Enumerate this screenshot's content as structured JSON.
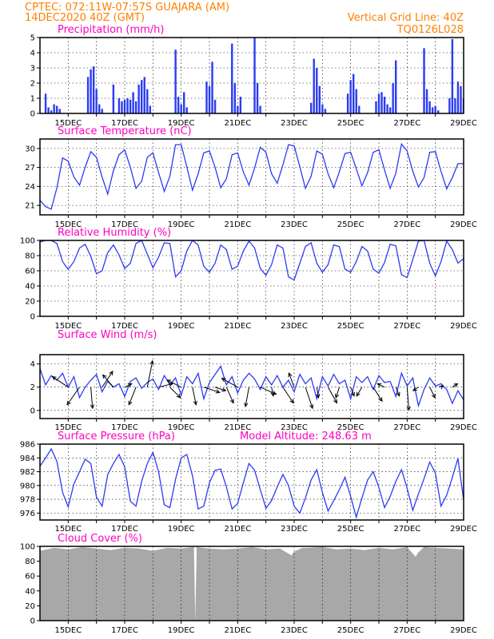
{
  "header": {
    "line1": "CPTEC:   072:11W-07:57S   GUAJARA (AM)",
    "line2": "14DEC2020 40Z (GMT)",
    "grid_note": "Vertical Grid Line: 40Z",
    "code": "TQ0126L028"
  },
  "x_axis": {
    "day_range": [
      14,
      29
    ],
    "date_labels": [
      "15DEC",
      "17DEC",
      "19DEC",
      "21DEC",
      "23DEC",
      "25DEC",
      "27DEC",
      "29DEC"
    ]
  },
  "colors": {
    "series": "#2b3cf2",
    "cloud": "#a8a8a8",
    "header": "#ff8000",
    "title": "#ff00c0"
  },
  "chart_data": [
    {
      "id": "precip",
      "type": "bar",
      "title": "Precipitation (mm/h)",
      "ylim": [
        0,
        5
      ],
      "yticks": [
        "0",
        "1",
        "2",
        "3",
        "4",
        "5"
      ],
      "x": [
        14.2,
        14.3,
        14.4,
        14.5,
        14.6,
        14.7,
        15.7,
        15.8,
        15.9,
        16.0,
        16.1,
        16.2,
        16.6,
        16.8,
        16.9,
        17.0,
        17.1,
        17.2,
        17.3,
        17.4,
        17.5,
        17.6,
        17.7,
        17.8,
        17.9,
        18.8,
        18.9,
        19.0,
        19.1,
        19.2,
        19.9,
        20.0,
        20.1,
        20.2,
        20.8,
        20.9,
        21.0,
        21.1,
        21.6,
        21.7,
        21.8,
        23.6,
        23.7,
        23.8,
        23.9,
        24.0,
        24.1,
        24.9,
        25.0,
        25.1,
        25.2,
        25.3,
        25.9,
        26.0,
        26.1,
        26.2,
        26.3,
        26.4,
        26.5,
        26.6,
        27.6,
        27.7,
        27.8,
        27.9,
        28.0,
        28.1,
        28.5,
        28.6,
        28.7,
        28.8,
        28.9,
        29.0
      ],
      "values": [
        1.3,
        0.4,
        0.2,
        0.6,
        0.5,
        0.3,
        2.4,
        2.9,
        3.1,
        1.6,
        0.6,
        0.3,
        1.9,
        1.0,
        0.8,
        0.9,
        1.0,
        0.9,
        1.4,
        0.8,
        1.9,
        2.2,
        2.4,
        1.6,
        0.5,
        4.2,
        1.1,
        0.6,
        1.4,
        0.4,
        2.1,
        1.8,
        3.4,
        0.9,
        4.6,
        2.0,
        0.5,
        1.1,
        5.0,
        2.0,
        0.5,
        0.7,
        3.6,
        3.0,
        1.8,
        0.6,
        0.3,
        1.3,
        2.2,
        2.6,
        1.6,
        0.5,
        0.8,
        1.3,
        1.4,
        1.1,
        0.6,
        0.4,
        2.0,
        3.5,
        4.3,
        1.6,
        0.8,
        0.4,
        0.5,
        0.2,
        1.0,
        4.9,
        1.0,
        2.1,
        1.8,
        1.0
      ]
    },
    {
      "id": "temp",
      "type": "line",
      "title": "Surface Temperature (nC)",
      "ylim": [
        19.5,
        31.5
      ],
      "yticks": [
        "21",
        "24",
        "27",
        "30"
      ],
      "x": [
        14.0,
        14.2,
        14.4,
        14.6,
        14.8,
        15.0,
        15.2,
        15.4,
        15.6,
        15.8,
        16.0,
        16.2,
        16.4,
        16.6,
        16.8,
        17.0,
        17.2,
        17.4,
        17.6,
        17.8,
        18.0,
        18.2,
        18.4,
        18.6,
        18.8,
        19.0,
        19.2,
        19.4,
        19.6,
        19.8,
        20.0,
        20.2,
        20.4,
        20.6,
        20.8,
        21.0,
        21.2,
        21.4,
        21.6,
        21.8,
        22.0,
        22.2,
        22.4,
        22.6,
        22.8,
        23.0,
        23.2,
        23.4,
        23.6,
        23.8,
        24.0,
        24.2,
        24.4,
        24.6,
        24.8,
        25.0,
        25.2,
        25.4,
        25.6,
        25.8,
        26.0,
        26.2,
        26.4,
        26.6,
        26.8,
        27.0,
        27.2,
        27.4,
        27.6,
        27.8,
        28.0,
        28.2,
        28.4,
        28.6,
        28.8,
        29.0
      ],
      "values": [
        21.8,
        20.8,
        20.4,
        23.8,
        28.5,
        28.0,
        25.5,
        24.2,
        27.0,
        29.5,
        28.6,
        25.5,
        22.8,
        26.5,
        29.0,
        29.8,
        27.0,
        23.7,
        24.8,
        28.6,
        29.3,
        26.2,
        23.2,
        25.6,
        30.6,
        30.6,
        27.1,
        23.4,
        26.0,
        29.3,
        29.6,
        27.0,
        23.8,
        25.2,
        29.0,
        29.3,
        26.3,
        24.2,
        26.9,
        30.2,
        29.4,
        26.0,
        24.5,
        27.4,
        30.6,
        30.4,
        27.1,
        23.7,
        25.6,
        29.6,
        29.1,
        26.0,
        23.8,
        26.3,
        29.2,
        29.4,
        26.8,
        24.1,
        26.2,
        29.4,
        29.8,
        26.6,
        23.7,
        26.1,
        30.7,
        29.6,
        26.4,
        23.9,
        25.4,
        29.4,
        29.5,
        26.4,
        23.6,
        25.4,
        27.6,
        27.6
      ]
    },
    {
      "id": "rh",
      "type": "line",
      "title": "Relative Humidity (%)",
      "ylim": [
        0,
        100
      ],
      "yticks": [
        "0",
        "20",
        "40",
        "60",
        "80",
        "100"
      ],
      "x": [
        14.0,
        14.2,
        14.4,
        14.6,
        14.8,
        15.0,
        15.2,
        15.4,
        15.6,
        15.8,
        16.0,
        16.2,
        16.4,
        16.6,
        16.8,
        17.0,
        17.2,
        17.4,
        17.6,
        17.8,
        18.0,
        18.2,
        18.4,
        18.6,
        18.8,
        19.0,
        19.2,
        19.4,
        19.6,
        19.8,
        20.0,
        20.2,
        20.4,
        20.6,
        20.8,
        21.0,
        21.2,
        21.4,
        21.6,
        21.8,
        22.0,
        22.2,
        22.4,
        22.6,
        22.8,
        23.0,
        23.2,
        23.4,
        23.6,
        23.8,
        24.0,
        24.2,
        24.4,
        24.6,
        24.8,
        25.0,
        25.2,
        25.4,
        25.6,
        25.8,
        26.0,
        26.2,
        26.4,
        26.6,
        26.8,
        27.0,
        27.2,
        27.4,
        27.6,
        27.8,
        28.0,
        28.2,
        28.4,
        28.6,
        28.8,
        29.0
      ],
      "values": [
        98,
        100,
        100,
        96,
        72,
        62,
        72,
        90,
        95,
        79,
        56,
        60,
        84,
        94,
        81,
        63,
        70,
        96,
        100,
        82,
        64,
        78,
        97,
        96,
        52,
        60,
        86,
        100,
        94,
        66,
        58,
        70,
        94,
        88,
        62,
        66,
        86,
        99,
        90,
        63,
        54,
        68,
        94,
        90,
        52,
        48,
        70,
        92,
        97,
        70,
        58,
        68,
        94,
        92,
        62,
        58,
        72,
        92,
        86,
        62,
        57,
        71,
        95,
        93,
        55,
        51,
        75,
        99,
        100,
        70,
        53,
        72,
        99,
        88,
        70,
        76
      ]
    },
    {
      "id": "wind",
      "type": "line",
      "title": "Surface Wind (m/s)",
      "ylim": [
        -0.7,
        4.8
      ],
      "yticks": [
        "0",
        "2",
        "4"
      ],
      "x": [
        14.0,
        14.2,
        14.4,
        14.6,
        14.8,
        15.0,
        15.2,
        15.4,
        15.6,
        15.8,
        16.0,
        16.2,
        16.4,
        16.6,
        16.8,
        17.0,
        17.2,
        17.4,
        17.6,
        17.8,
        18.0,
        18.2,
        18.4,
        18.6,
        18.8,
        19.0,
        19.2,
        19.4,
        19.6,
        19.8,
        20.0,
        20.2,
        20.4,
        20.6,
        20.8,
        21.0,
        21.2,
        21.4,
        21.6,
        21.8,
        22.0,
        22.2,
        22.4,
        22.6,
        22.8,
        23.0,
        23.2,
        23.4,
        23.6,
        23.8,
        24.0,
        24.2,
        24.4,
        24.6,
        24.8,
        25.0,
        25.2,
        25.4,
        25.6,
        25.8,
        26.0,
        26.2,
        26.4,
        26.6,
        26.8,
        27.0,
        27.2,
        27.4,
        27.6,
        27.8,
        28.0,
        28.2,
        28.4,
        28.6,
        28.8,
        29.0
      ],
      "values": [
        3.6,
        2.2,
        3.0,
        2.6,
        3.2,
        2.0,
        2.9,
        1.1,
        2.0,
        2.6,
        3.1,
        1.6,
        2.5,
        2.0,
        2.3,
        1.2,
        2.5,
        2.8,
        1.9,
        2.4,
        2.7,
        1.8,
        3.0,
        2.2,
        2.8,
        1.3,
        2.9,
        2.3,
        3.2,
        1.0,
        2.4,
        3.1,
        3.8,
        2.2,
        2.9,
        1.5,
        2.6,
        3.2,
        2.7,
        1.8,
        2.9,
        2.2,
        3.0,
        2.0,
        2.6,
        1.6,
        3.1,
        2.3,
        2.8,
        1.0,
        2.9,
        2.1,
        3.1,
        2.3,
        2.6,
        1.0,
        2.9,
        2.4,
        2.9,
        1.8,
        3.0,
        2.4,
        2.5,
        1.2,
        3.2,
        2.1,
        2.8,
        0.4,
        1.8,
        2.8,
        2.1,
        2.3,
        1.8,
        0.6,
        1.7,
        0.9
      ],
      "arrows": {
        "x": [
          15.0,
          15.4,
          15.8,
          16.2,
          16.6,
          17.0,
          17.4,
          17.8,
          18.2,
          18.6,
          19.0,
          19.4,
          19.8,
          20.2,
          20.6,
          21.0,
          21.4,
          21.8,
          22.2,
          22.6,
          23.0,
          23.4,
          23.8,
          24.2,
          24.6,
          25.0,
          25.4,
          25.8,
          26.2,
          26.6,
          27.0,
          27.4,
          27.8,
          28.2,
          28.6
        ],
        "u": [
          -0.9,
          -0.7,
          0.1,
          0.6,
          -0.6,
          0.4,
          -0.4,
          0.3,
          0.8,
          0.6,
          -0.8,
          0.2,
          0.9,
          0.6,
          0.4,
          -0.9,
          -0.2,
          0.9,
          0.1,
          0.6,
          -0.3,
          0.4,
          0.1,
          0.5,
          -0.2,
          0.2,
          -0.3,
          0.5,
          -0.4,
          0.2,
          0.1,
          -0.3,
          0.3,
          0.1,
          0.3
        ],
        "v": [
          0.6,
          -1.0,
          -1.2,
          0.9,
          0.7,
          0.2,
          -1.0,
          1.5,
          0.2,
          -0.6,
          0.4,
          -1.0,
          -0.3,
          -0.2,
          -0.9,
          0.5,
          -1.1,
          -0.4,
          -0.5,
          -0.9,
          0.8,
          -1.2,
          -0.6,
          -0.9,
          -0.6,
          -0.5,
          -0.5,
          -0.8,
          0.2,
          -0.5,
          -1.3,
          -0.2,
          -0.6,
          0.1,
          0.2
        ]
      }
    },
    {
      "id": "pressure",
      "type": "line",
      "title": "Surface Pressure (hPa)",
      "subtitle": "Model Altitude: 248.63 m",
      "ylim": [
        975,
        986
      ],
      "yticks": [
        "976",
        "978",
        "980",
        "982",
        "984",
        "986"
      ],
      "x": [
        14.0,
        14.2,
        14.4,
        14.6,
        14.8,
        15.0,
        15.2,
        15.4,
        15.6,
        15.8,
        16.0,
        16.2,
        16.4,
        16.6,
        16.8,
        17.0,
        17.2,
        17.4,
        17.6,
        17.8,
        18.0,
        18.2,
        18.4,
        18.6,
        18.8,
        19.0,
        19.2,
        19.4,
        19.6,
        19.8,
        20.0,
        20.2,
        20.4,
        20.6,
        20.8,
        21.0,
        21.2,
        21.4,
        21.6,
        21.8,
        22.0,
        22.2,
        22.4,
        22.6,
        22.8,
        23.0,
        23.2,
        23.4,
        23.6,
        23.8,
        24.0,
        24.2,
        24.4,
        24.6,
        24.8,
        25.0,
        25.2,
        25.4,
        25.6,
        25.8,
        26.0,
        26.2,
        26.4,
        26.6,
        26.8,
        27.0,
        27.2,
        27.4,
        27.6,
        27.8,
        28.0,
        28.2,
        28.4,
        28.6,
        28.8,
        29.0
      ],
      "values": [
        982.8,
        984.0,
        985.3,
        983.5,
        979.0,
        976.9,
        980.2,
        982.0,
        983.8,
        983.2,
        978.3,
        977.0,
        981.6,
        983.2,
        984.5,
        982.7,
        977.7,
        977.0,
        980.6,
        983.2,
        984.8,
        982.0,
        977.2,
        976.8,
        980.9,
        984.0,
        984.5,
        981.4,
        976.6,
        977.0,
        980.4,
        982.2,
        982.4,
        979.8,
        976.6,
        977.4,
        980.4,
        983.2,
        982.2,
        979.4,
        976.7,
        977.8,
        979.8,
        981.6,
        980.0,
        977.0,
        976.0,
        978.2,
        980.8,
        982.3,
        979.0,
        976.3,
        977.8,
        979.4,
        981.2,
        978.4,
        975.4,
        978.2,
        980.8,
        982.0,
        979.7,
        976.8,
        978.4,
        980.6,
        982.3,
        979.6,
        976.4,
        978.8,
        981.0,
        983.4,
        981.8,
        977.0,
        978.6,
        981.2,
        983.9,
        977.9
      ]
    },
    {
      "id": "cloud",
      "type": "area",
      "title": "Cloud Cover (%)",
      "ylim": [
        0,
        100
      ],
      "yticks": [
        "0",
        "20",
        "40",
        "60",
        "80",
        "100"
      ],
      "x": [
        14.0,
        14.5,
        15.0,
        15.5,
        16.0,
        16.5,
        17.0,
        17.5,
        18.0,
        18.5,
        19.0,
        19.45,
        19.5,
        19.55,
        20.0,
        20.5,
        21.0,
        21.5,
        22.0,
        22.5,
        22.9,
        23.0,
        23.3,
        23.5,
        24.0,
        24.5,
        25.0,
        25.5,
        26.0,
        26.5,
        27.0,
        27.3,
        27.4,
        27.6,
        28.0,
        28.5,
        29.0
      ],
      "values": [
        94,
        98,
        96,
        99,
        97,
        95,
        98,
        97,
        94,
        98,
        97,
        99,
        0,
        99,
        97,
        96,
        97,
        99,
        96,
        97,
        88,
        93,
        98,
        98,
        99,
        96,
        97,
        95,
        98,
        96,
        99,
        86,
        92,
        99,
        98,
        97,
        96
      ]
    }
  ]
}
